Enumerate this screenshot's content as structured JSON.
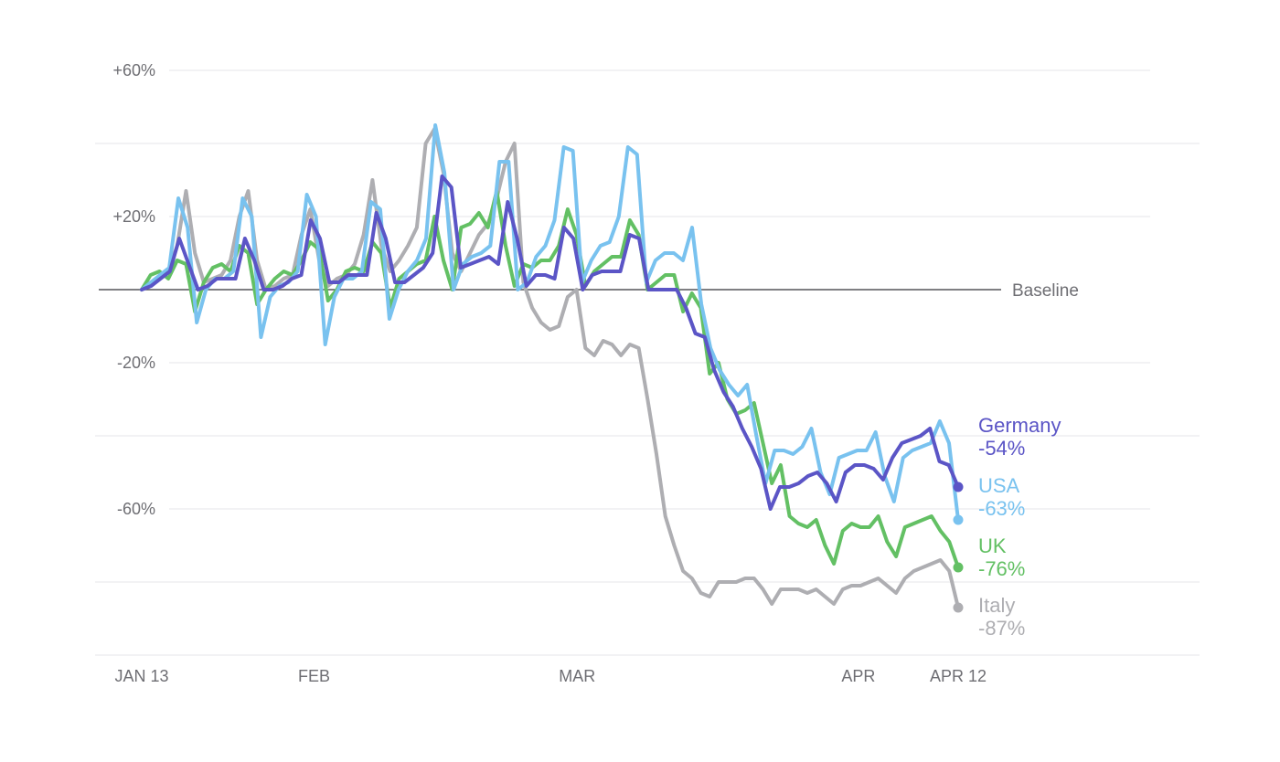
{
  "chart_data": {
    "type": "line",
    "x_range": [
      "2020-01-13",
      "2020-04-12"
    ],
    "ylim": [
      -100,
      60
    ],
    "y_ticks": [
      {
        "value": 60,
        "label": "+60%"
      },
      {
        "value": 20,
        "label": "+20%"
      },
      {
        "value": -20,
        "label": "-20%"
      },
      {
        "value": -60,
        "label": "-60%"
      }
    ],
    "gridlines": [
      60,
      40,
      20,
      -20,
      -40,
      -60,
      -80,
      -100
    ],
    "x_ticks": [
      {
        "date": "2020-01-13",
        "label": "JAN 13"
      },
      {
        "date": "2020-02-01",
        "label": "FEB"
      },
      {
        "date": "2020-03-01",
        "label": "MAR"
      },
      {
        "date": "2020-04-01",
        "label": "APR"
      },
      {
        "date": "2020-04-12",
        "label": "APR 12"
      }
    ],
    "baseline_label": "Baseline",
    "series": [
      {
        "name": "Italy",
        "final_label": "-87%",
        "color": "#aeaeb2",
        "values": [
          0,
          2,
          3,
          5,
          12,
          27,
          10,
          2,
          3,
          4,
          8,
          20,
          27,
          8,
          0,
          1,
          3,
          4,
          15,
          22,
          8,
          1,
          3,
          4,
          7,
          15,
          30,
          12,
          5,
          8,
          12,
          17,
          40,
          44,
          32,
          10,
          5,
          10,
          15,
          18,
          25,
          35,
          40,
          2,
          -5,
          -9,
          -11,
          -10,
          -2,
          0,
          -16,
          -18,
          -14,
          -15,
          -18,
          -15,
          -16,
          -30,
          -45,
          -62,
          -70,
          -77,
          -79,
          -83,
          -84,
          -80,
          -80,
          -80,
          -79,
          -79,
          -82,
          -86,
          -82,
          -82,
          -82,
          -83,
          -82,
          -84,
          -86,
          -82,
          -81,
          -81,
          -80,
          -79,
          -81,
          -83,
          -79,
          -77,
          -76,
          -75,
          -74,
          -77,
          -87
        ]
      },
      {
        "name": "UK",
        "final_label": "-76%",
        "color": "#63c064",
        "values": [
          0,
          4,
          5,
          3,
          8,
          7,
          -6,
          2,
          6,
          7,
          5,
          12,
          10,
          -4,
          0,
          3,
          5,
          4,
          8,
          13,
          11,
          -3,
          0,
          5,
          6,
          5,
          13,
          10,
          -5,
          3,
          5,
          7,
          8,
          20,
          8,
          0,
          17,
          18,
          21,
          17,
          27,
          12,
          1,
          7,
          6,
          8,
          8,
          12,
          22,
          15,
          1,
          5,
          7,
          9,
          9,
          19,
          15,
          0,
          2,
          4,
          4,
          -6,
          -1,
          -5,
          -23,
          -20,
          -30,
          -34,
          -33,
          -31,
          -42,
          -53,
          -48,
          -62,
          -64,
          -65,
          -63,
          -70,
          -75,
          -66,
          -64,
          -65,
          -65,
          -62,
          -69,
          -73,
          -65,
          -64,
          -63,
          -62,
          -66,
          -69,
          -76
        ]
      },
      {
        "name": "USA",
        "final_label": "-63%",
        "color": "#79c2ef",
        "values": [
          0,
          2,
          4,
          6,
          25,
          17,
          -9,
          0,
          3,
          3,
          5,
          25,
          20,
          -13,
          -2,
          1,
          2,
          5,
          26,
          20,
          -15,
          -2,
          3,
          3,
          5,
          24,
          22,
          -8,
          0,
          5,
          8,
          14,
          45,
          32,
          0,
          7,
          9,
          10,
          12,
          35,
          35,
          0,
          2,
          9,
          12,
          19,
          39,
          38,
          2,
          8,
          12,
          13,
          20,
          39,
          37,
          2,
          8,
          10,
          10,
          8,
          17,
          -4,
          -16,
          -22,
          -26,
          -29,
          -26,
          -40,
          -53,
          -44,
          -44,
          -45,
          -43,
          -38,
          -50,
          -56,
          -46,
          -45,
          -44,
          -44,
          -39,
          -51,
          -58,
          -46,
          -44,
          -43,
          -42,
          -36,
          -42,
          -63
        ]
      },
      {
        "name": "Germany",
        "final_label": "-54%",
        "color": "#5b55c6",
        "values": [
          0,
          1,
          3,
          5,
          14,
          7,
          0,
          1,
          3,
          3,
          3,
          14,
          8,
          0,
          0,
          1,
          3,
          4,
          19,
          14,
          2,
          2,
          4,
          4,
          4,
          21,
          14,
          2,
          2,
          4,
          6,
          10,
          31,
          28,
          6,
          7,
          8,
          9,
          7,
          24,
          14,
          1,
          4,
          4,
          3,
          17,
          14,
          0,
          4,
          5,
          5,
          5,
          15,
          14,
          0,
          0,
          0,
          0,
          -5,
          -12,
          -13,
          -22,
          -28,
          -32,
          -38,
          -43,
          -49,
          -60,
          -54,
          -54,
          -53,
          -51,
          -50,
          -53,
          -58,
          -50,
          -48,
          -48,
          -49,
          -52,
          -46,
          -42,
          -41,
          -40,
          -38,
          -47,
          -48,
          -54
        ]
      }
    ]
  }
}
